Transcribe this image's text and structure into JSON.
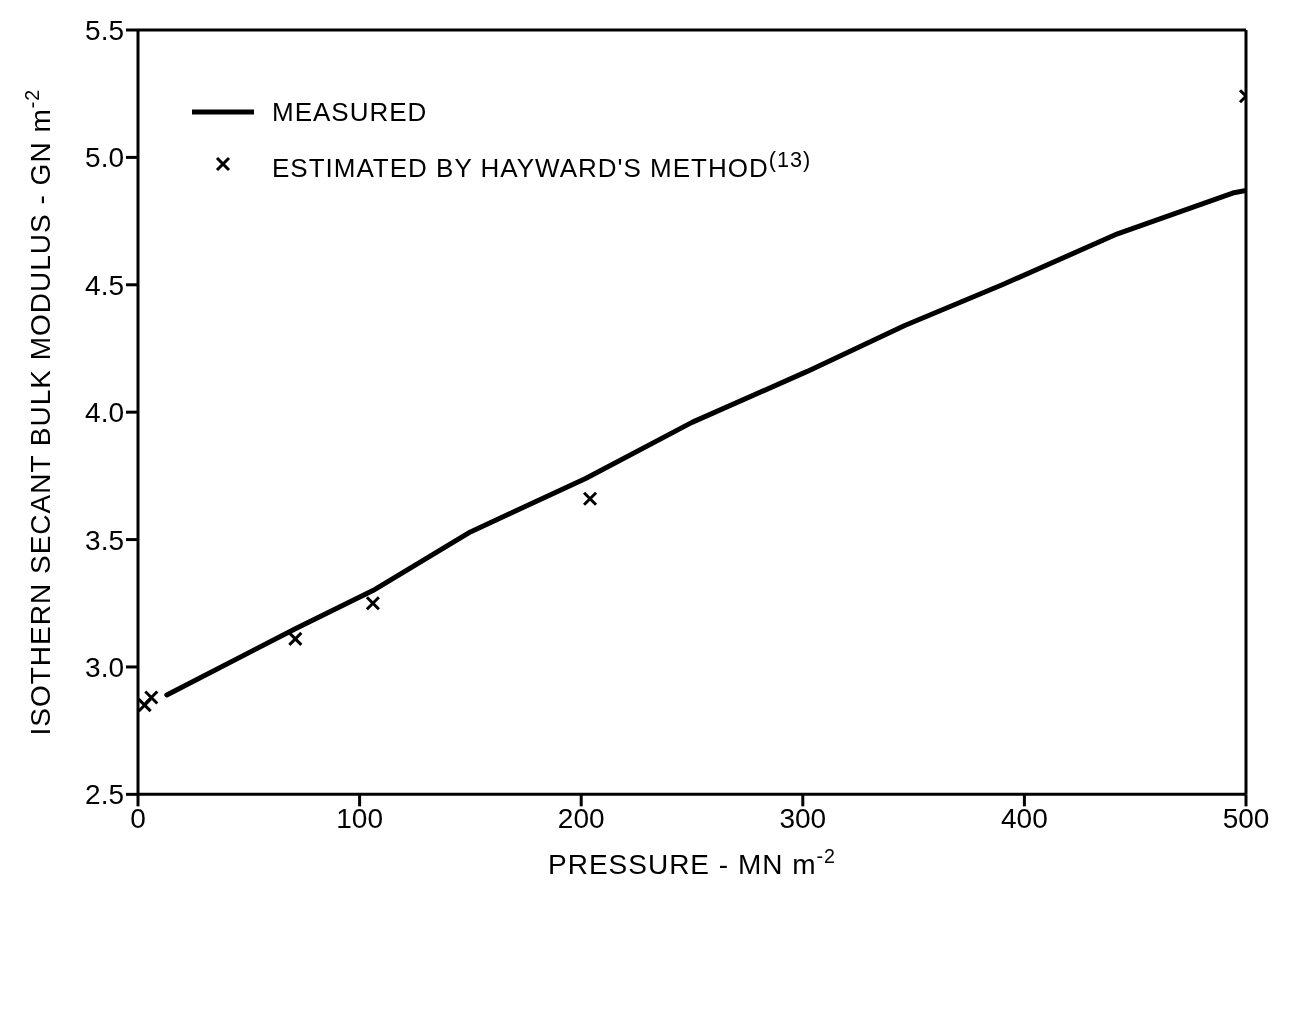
{
  "chart_data": {
    "type": "line",
    "xlabel": "PRESSURE - MN m$^{-2}$",
    "ylabel": "ISOTHERN SECANT BULK MODULUS - GN m$^{-2}$",
    "xlim": [
      0,
      500
    ],
    "xticks": [
      0,
      100,
      200,
      300,
      400,
      500
    ],
    "ylim": [
      2.5,
      5.5
    ],
    "yticks": [
      2.5,
      {
        "value": 3,
        "label": "3.0"
      },
      3.5,
      {
        "value": 4,
        "label": "4.0"
      },
      4.5,
      {
        "value": 5,
        "label": "5.0"
      },
      5.5
    ],
    "legend": "top left",
    "series": [
      {
        "name": "MEASURED",
        "color": "#000000",
        "line_style": "solid",
        "marker": "none",
        "x": [
          13,
          71,
          106,
          150,
          202,
          250,
          302,
          346,
          390,
          442,
          494,
          500
        ],
        "values": [
          2.89,
          3.15,
          3.3,
          3.53,
          3.74,
          3.96,
          4.16,
          4.34,
          4.5,
          4.7,
          4.86,
          4.87
        ]
      },
      {
        "name": "ESTIMATED BY HAYWARD'S METHOD$^{(13)}$",
        "type": "scatter",
        "color": "#000000",
        "marker": "cross",
        "x": [
          3,
          6,
          71,
          106,
          204,
          500
        ],
        "values": [
          2.85,
          2.88,
          3.11,
          3.25,
          3.66,
          5.24
        ]
      }
    ]
  }
}
